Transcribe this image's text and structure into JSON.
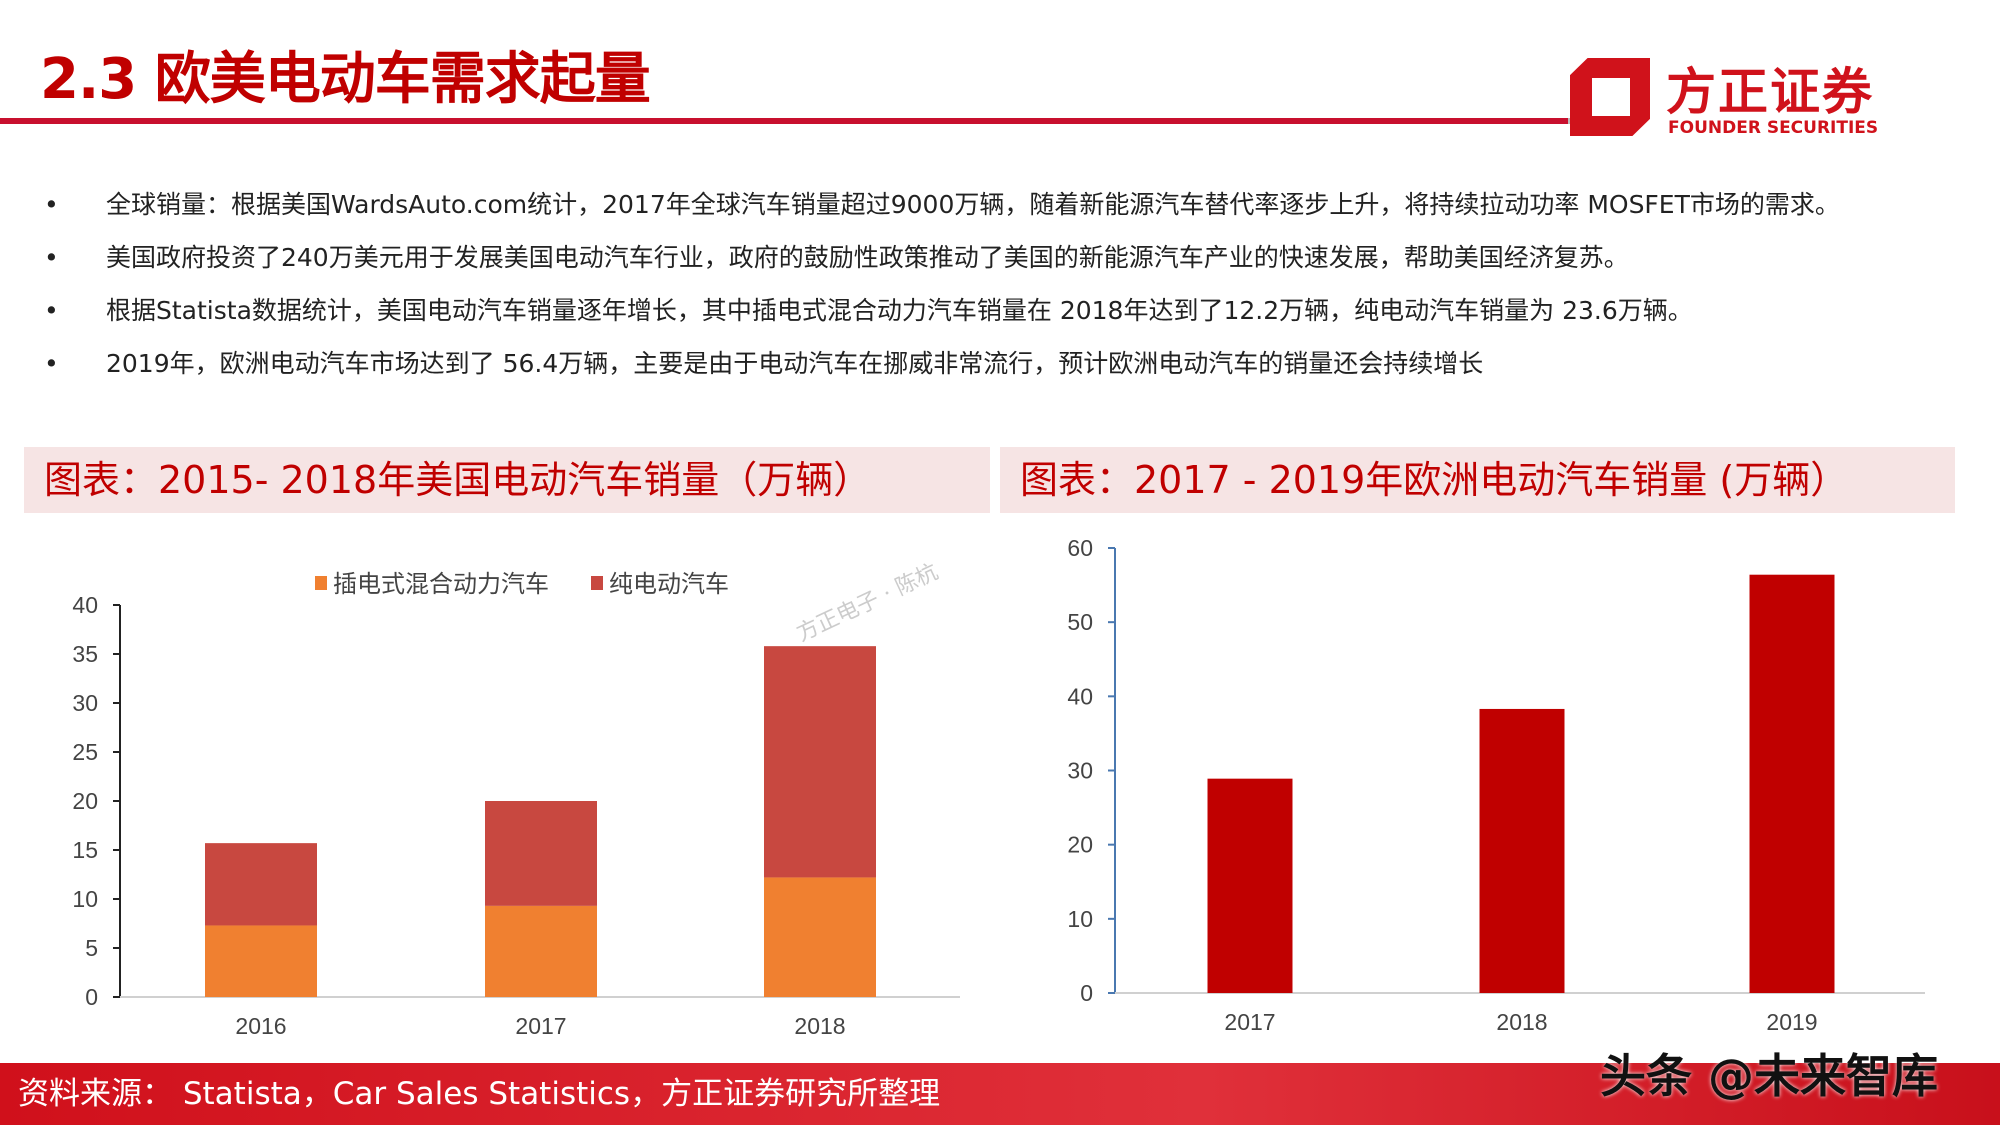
{
  "header": {
    "title": "2.3 欧美电动车需求起量",
    "logo_cn": "方正证券",
    "logo_en": "FOUNDER SECURITIES"
  },
  "bullets": [
    "全球销量：根据美国WardsAuto.com统计，2017年全球汽车销量超过9000万辆，随着新能源汽车替代率逐步上升，将持续拉动功率 MOSFET市场的需求。",
    "美国政府投资了240万美元用于发展美国电动汽车行业，政府的鼓励性政策推动了美国的新能源汽车产业的快速发展，帮助美国经济复苏。",
    "根据Statista数据统计，美国电动汽车销量逐年增长，其中插电式混合动力汽车销量在  2018年达到了12.2万辆，纯电动汽车销量为 23.6万辆。",
    "2019年，欧洲电动汽车市场达到了 56.4万辆，主要是由于电动汽车在挪威非常流行，预计欧洲电动汽车的销量还会持续增长"
  ],
  "watermark_faint": "方正电子 · 陈杭",
  "footer": {
    "source": "资料来源： Statista，Car Sales Statistics，方正证券研究所整理",
    "watermark": "头条 @未来智库"
  },
  "chart_data": [
    {
      "type": "bar",
      "stacked": true,
      "title": "图表：2015- 2018年美国电动汽车销量（万辆）",
      "categories": [
        "2016",
        "2017",
        "2018"
      ],
      "series": [
        {
          "name": "插电式混合动力汽车",
          "color": "#f08030",
          "values": [
            7.3,
            9.3,
            12.2
          ]
        },
        {
          "name": "纯电动汽车",
          "color": "#c84840",
          "values": [
            8.4,
            10.7,
            23.6
          ]
        }
      ],
      "ylim": [
        0,
        40
      ],
      "yticks": [
        "0",
        "5",
        "10",
        "15",
        "20",
        "25",
        "30",
        "35",
        "40"
      ],
      "legend": "top",
      "grid": false
    },
    {
      "type": "bar",
      "title": "图表：2017 - 2019年欧洲电动汽车销量 (万辆）",
      "categories": [
        "2017",
        "2018",
        "2019"
      ],
      "series": [
        {
          "color": "#c00000",
          "values": [
            28.9,
            38.3,
            56.4
          ]
        }
      ],
      "ylim": [
        0,
        60
      ],
      "yticks": [
        "0",
        "10",
        "20",
        "30",
        "40",
        "50",
        "60"
      ],
      "grid": false
    }
  ]
}
